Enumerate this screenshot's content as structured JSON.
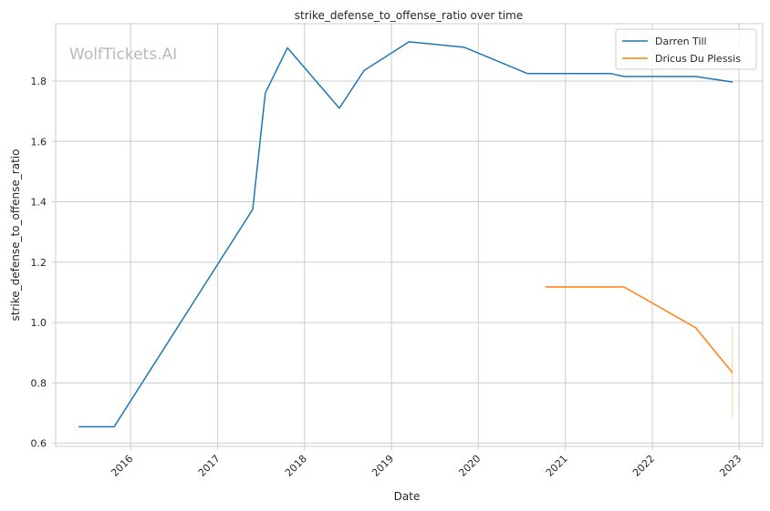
{
  "chart_data": {
    "type": "line",
    "title": "strike_defense_to_offense_ratio over time",
    "xlabel": "Date",
    "ylabel": "strike_defense_to_offense_ratio",
    "watermark": "WolfTickets.AI",
    "xlim": [
      "2015-02-20",
      "2023-04-10"
    ],
    "ylim": [
      0.59,
      1.99
    ],
    "x_ticks": [
      "2016",
      "2017",
      "2018",
      "2019",
      "2020",
      "2021",
      "2022",
      "2023"
    ],
    "y_ticks": [
      "0.6",
      "0.8",
      "1.0",
      "1.2",
      "1.4",
      "1.6",
      "1.8"
    ],
    "grid": true,
    "legend_position": "top-right",
    "series": [
      {
        "name": "Darren Till",
        "color": "#1f77b4",
        "points": [
          [
            "2015-05-30",
            0.655
          ],
          [
            "2015-10-24",
            0.655
          ],
          [
            "2017-05-28",
            1.375
          ],
          [
            "2017-07-20",
            1.76
          ],
          [
            "2017-10-21",
            1.91
          ],
          [
            "2018-05-27",
            1.71
          ],
          [
            "2018-09-08",
            1.835
          ],
          [
            "2019-03-16",
            1.93
          ],
          [
            "2019-11-02",
            1.912
          ],
          [
            "2020-07-25",
            1.825
          ],
          [
            "2021-07-10",
            1.825
          ],
          [
            "2021-09-04",
            1.815
          ],
          [
            "2022-07-02",
            1.815
          ],
          [
            "2022-12-03",
            1.797
          ]
        ]
      },
      {
        "name": "Dricus Du Plessis",
        "color": "#ff7f0e",
        "points": [
          [
            "2020-10-11",
            1.118
          ],
          [
            "2021-09-04",
            1.118
          ],
          [
            "2022-07-02",
            0.983
          ],
          [
            "2022-12-03",
            0.835
          ]
        ]
      }
    ],
    "error_band": {
      "color": "#ff7f0e",
      "date": "2022-12-03",
      "range": [
        0.685,
        0.985
      ]
    }
  }
}
